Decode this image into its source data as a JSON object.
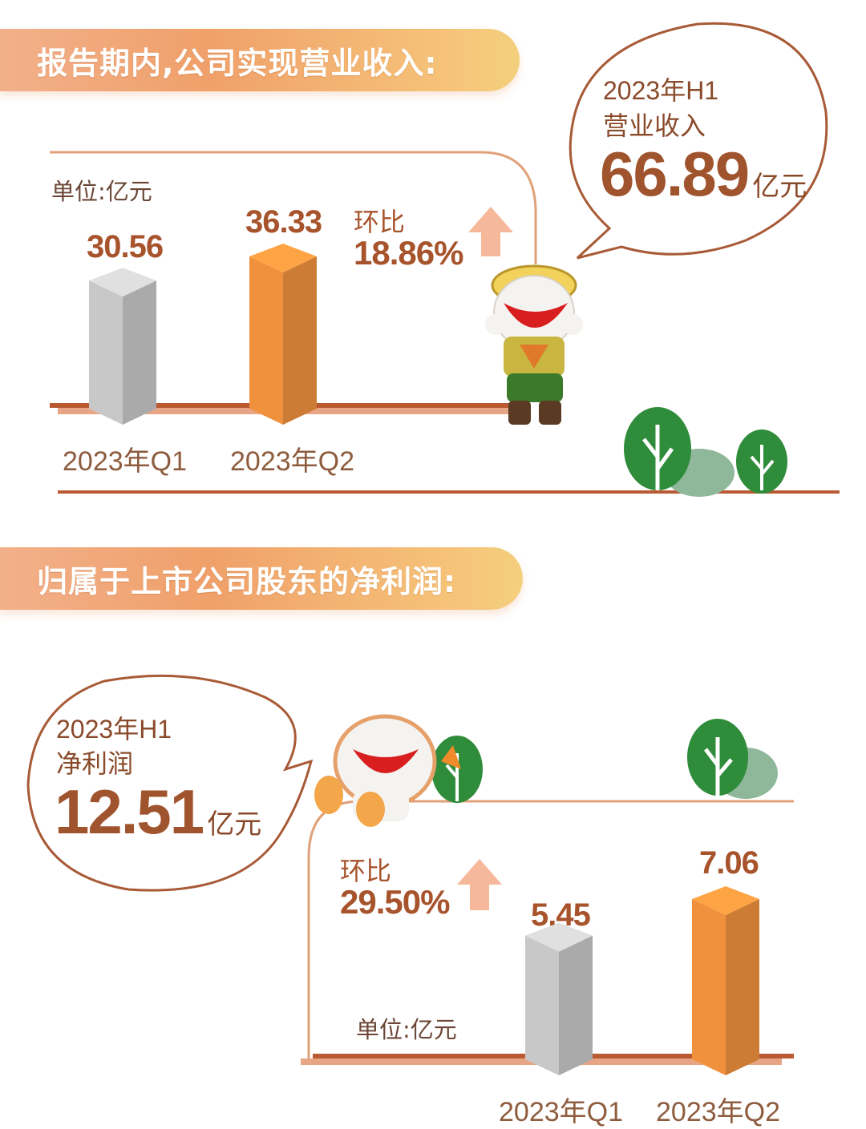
{
  "section1": {
    "banner_title": "报告期内,公司实现营业收入:",
    "unit": "单位:亿元",
    "bubble": {
      "line1": "2023年H1",
      "line2": "营业收入",
      "value": "66.89",
      "unit": "亿元"
    },
    "growth": {
      "label": "环比",
      "value": "18.86%"
    },
    "value_labels": [
      "30.56",
      "36.33"
    ],
    "categories": [
      "2023年Q1",
      "2023年Q2"
    ]
  },
  "section2": {
    "banner_title": "归属于上市公司股东的净利润:",
    "unit": "单位:亿元",
    "bubble": {
      "line1": "2023年H1",
      "line2": "净利润",
      "value": "12.51",
      "unit": "亿元"
    },
    "growth": {
      "label": "环比",
      "value": "29.50%"
    },
    "value_labels": [
      "5.45",
      "7.06"
    ],
    "categories": [
      "2023年Q1",
      "2023年Q2"
    ]
  },
  "colors": {
    "orange": "#f0923d",
    "grey": "#c8c8c8",
    "text_brown": "#a7532c",
    "axis": "#b8562f",
    "tree_green": "#3f9a4a"
  },
  "chart_data": [
    {
      "type": "bar",
      "categories": [
        "2023年Q1",
        "2023年Q2"
      ],
      "values": [
        30.56,
        36.33
      ],
      "ylabel": "单位:亿元"
    },
    {
      "type": "bar",
      "categories": [
        "2023年Q1",
        "2023年Q2"
      ],
      "values": [
        5.45,
        7.06
      ],
      "ylabel": "单位:亿元"
    }
  ]
}
